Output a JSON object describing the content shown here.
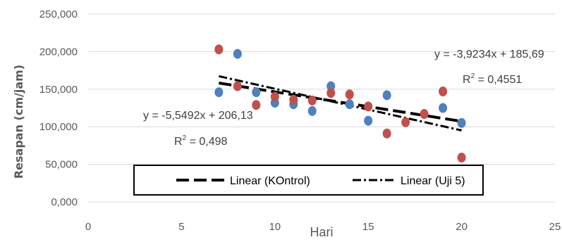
{
  "chart_data": {
    "type": "scatter",
    "title": "",
    "xlabel": "Hari",
    "ylabel": "Resapan (cm/jam)",
    "xlim": [
      0,
      25
    ],
    "ylim": [
      0,
      250000
    ],
    "x_ticks": [
      "0",
      "5",
      "10",
      "15",
      "20",
      "25"
    ],
    "y_ticks": [
      "0,000",
      "50,000",
      "100,000",
      "150,000",
      "200,000",
      "250,000"
    ],
    "grid": "horizontal",
    "legend_position": "bottom",
    "colors": {
      "blue": "#4f81bd",
      "red": "#c0504d",
      "trend": "#000000"
    },
    "series": [
      {
        "color": "#4f81bd",
        "points": [
          [
            7,
            146000
          ],
          [
            8,
            197000
          ],
          [
            9,
            146000
          ],
          [
            10,
            132000
          ],
          [
            11,
            130000
          ],
          [
            12,
            121000
          ],
          [
            13,
            154000
          ],
          [
            14,
            130000
          ],
          [
            15,
            108000
          ],
          [
            16,
            142000
          ],
          [
            19,
            125000
          ],
          [
            20,
            105000
          ]
        ]
      },
      {
        "color": "#c0504d",
        "points": [
          [
            7,
            203000
          ],
          [
            8,
            154000
          ],
          [
            9,
            129000
          ],
          [
            10,
            140000
          ],
          [
            11,
            136000
          ],
          [
            12,
            135000
          ],
          [
            13,
            145000
          ],
          [
            14,
            143000
          ],
          [
            15,
            127000
          ],
          [
            16,
            91000
          ],
          [
            17,
            106000
          ],
          [
            18,
            117000
          ],
          [
            19,
            147000
          ],
          [
            20,
            59000
          ]
        ]
      }
    ],
    "trendlines": [
      {
        "label": "Linear (KOntrol)",
        "style": "dash",
        "slope": -3.9234,
        "intercept": 185.69,
        "x_range": [
          7,
          20
        ]
      },
      {
        "label": "Linear (Uji 5)",
        "style": "dash-dot",
        "slope": -5.5492,
        "intercept": 206.13,
        "x_range": [
          7,
          20
        ]
      }
    ],
    "annotations": [
      {
        "equation": "y = -3,9234x + 185,69",
        "r2_prefix": "R",
        "r2_value": " = 0,4551"
      },
      {
        "equation": "y = -5,5492x + 206,13",
        "r2_prefix": "R",
        "r2_value": " = 0,498"
      }
    ],
    "superscript": "2"
  }
}
